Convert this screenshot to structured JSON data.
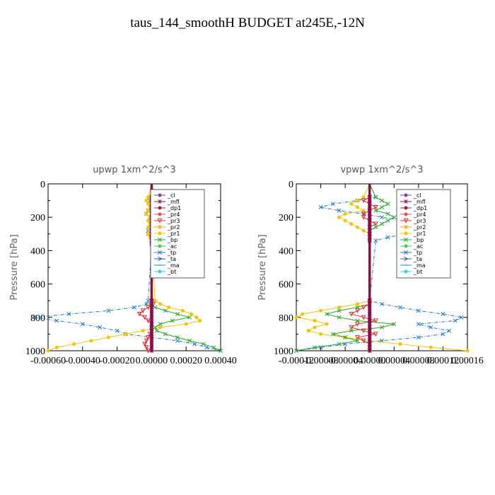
{
  "title": "taus_144_smoothH  BUDGET at245E,-12N",
  "chart_data": [
    {
      "type": "line",
      "subtitle": "upwp   1xm^2/s^3",
      "ylabel": "Pressure [hPa]",
      "ylim": [
        1000,
        0
      ],
      "xlim": [
        -0.0006,
        0.0004
      ],
      "xtick_labels": [
        "-0.00060",
        "-0.00040",
        "-0.00020",
        "0.00000",
        "0.00020",
        "0.00040"
      ],
      "xtick_values": [
        -0.0006,
        -0.0004,
        -0.0002,
        0.0,
        0.0002,
        0.0004
      ],
      "ytick_labels": [
        "0",
        "200",
        "400",
        "600",
        "800",
        "1000"
      ],
      "ytick_values": [
        0,
        200,
        400,
        600,
        800,
        1000
      ],
      "legend": [
        "_cl",
        "_mfl",
        "_dp1",
        "_pr4",
        "_pr3",
        "_pr2",
        "_pr1",
        "_bp",
        "_ac",
        "_tp",
        "_ta",
        "_ma",
        "_bt"
      ],
      "legend_position": "top-right",
      "y_levels": [
        0,
        80,
        100,
        120,
        140,
        160,
        180,
        200,
        220,
        240,
        260,
        280,
        300,
        320,
        340,
        360,
        700,
        720,
        740,
        760,
        780,
        800,
        820,
        840,
        860,
        880,
        900,
        920,
        940,
        960,
        980,
        1000
      ],
      "series": [
        {
          "name": "_tp",
          "color": "#1f78c8",
          "values": [
            0,
            3e-05,
            4e-05,
            2e-05,
            1e-05,
            -2e-05,
            -3e-05,
            -1e-05,
            2e-05,
            1e-05,
            0.0,
            -2e-05,
            -2e-05,
            0.0,
            1e-05,
            0.0,
            -2e-05,
            -3e-05,
            -0.0001,
            -0.00025,
            -0.00048,
            -0.00068,
            -0.00055,
            -0.0004,
            -0.0003,
            -0.0002,
            -0.00015,
            0.0,
            0.00015,
            0.00025,
            0.00032,
            0.0004
          ]
        },
        {
          "name": "_pr2",
          "color": "#f5c400",
          "values": [
            0,
            -2e-05,
            -3e-05,
            -2e-05,
            -1e-05,
            -2e-05,
            -3e-05,
            -1e-05,
            -2e-05,
            -1e-05,
            -2e-05,
            -1e-05,
            -2e-05,
            -1e-05,
            0.0,
            0.0,
            2e-05,
            5e-05,
            0.0001,
            0.00018,
            0.00023,
            0.00026,
            0.00028,
            0.0002,
            5e-05,
            -5e-05,
            -0.00015,
            -0.00025,
            -0.00035,
            -0.00045,
            -0.00055,
            -0.0006
          ]
        },
        {
          "name": "_bp",
          "color": "#28a828",
          "values": [
            0,
            0.0,
            -1e-05,
            0.0,
            1e-05,
            0.0,
            0.0,
            0.0,
            0.0,
            0.0,
            0.0,
            0.0,
            0.0,
            0.0,
            0.0,
            0.0,
            0.0,
            -1e-05,
            2e-05,
            8e-05,
            0.00015,
            0.00022,
            0.00012,
            5e-05,
            2e-05,
            3e-05,
            8e-05,
            0.00015,
            0.00022,
            0.0003,
            0.00036,
            0.0004
          ]
        },
        {
          "name": "_pr3",
          "color": "#e03030",
          "values": [
            0,
            0.0,
            0.0,
            0.0,
            0.0,
            0.0,
            0.0,
            0.0,
            0.0,
            0.0,
            0.0,
            0.0,
            0.0,
            0.0,
            0.0,
            0.0,
            0.0,
            1e-05,
            -2e-05,
            -5e-05,
            -7e-05,
            -4e-05,
            -2e-05,
            0.0,
            0.0,
            0.0,
            -1e-05,
            -2e-05,
            -3e-05,
            -4e-05,
            -3e-05,
            -2e-05
          ]
        },
        {
          "name": "_cl",
          "color": "#8a3aa8",
          "values": [
            0,
            0,
            0,
            0,
            0,
            0,
            0,
            0,
            0,
            0,
            0,
            0,
            0,
            0,
            0,
            0,
            0,
            0,
            0,
            0,
            0,
            0,
            0,
            0,
            0,
            0,
            0,
            0,
            0,
            0,
            0,
            0
          ]
        },
        {
          "name": "_mfl",
          "color": "#8a1040",
          "values": [
            0,
            0,
            0,
            0,
            0,
            0,
            0,
            0,
            0,
            0,
            0,
            0,
            0,
            0,
            0,
            0,
            0,
            0,
            0,
            0,
            0,
            0,
            0,
            0,
            0,
            0,
            0,
            0,
            0,
            0,
            0,
            0
          ]
        }
      ]
    },
    {
      "type": "line",
      "subtitle": "vpwp   1xm^2/s^3",
      "ylabel": "Pressure [hPa]",
      "ylim": [
        1000,
        0
      ],
      "xlim": [
        -0.00012,
        0.00016
      ],
      "xtick_labels": [
        "-0.00012",
        "-0.00008",
        "-0.00004",
        "0.00000",
        "0.00004",
        "0.00008",
        "0.00012",
        "0.00016"
      ],
      "xtick_values": [
        -0.00012,
        -8e-05,
        -4e-05,
        0.0,
        4e-05,
        8e-05,
        0.00012,
        0.00016
      ],
      "ytick_labels": [
        "0",
        "200",
        "400",
        "600",
        "800",
        "1000"
      ],
      "ytick_values": [
        0,
        200,
        400,
        600,
        800,
        1000
      ],
      "legend": [
        "_cl",
        "_mfl",
        "_dp1",
        "_pr4",
        "_pr3",
        "_pr2",
        "_pr1",
        "_bp",
        "_ac",
        "_tp",
        "_ta",
        "_ma",
        "_bt"
      ],
      "legend_position": "top-right",
      "y_levels": [
        0,
        80,
        100,
        120,
        140,
        160,
        180,
        200,
        220,
        240,
        260,
        280,
        300,
        320,
        340,
        700,
        720,
        740,
        760,
        780,
        800,
        820,
        840,
        860,
        880,
        900,
        920,
        940,
        960,
        980,
        1000
      ],
      "series": [
        {
          "name": "_tp",
          "color": "#1f78c8",
          "values": [
            0,
            1e-05,
            -2e-05,
            -6e-05,
            -8e-05,
            -5e-05,
            -1e-05,
            2e-05,
            6e-05,
            8e-05,
            0.0001,
            8e-05,
            6e-05,
            3e-05,
            1e-05,
            0.0,
            2e-05,
            5e-05,
            8e-05,
            0.00012,
            0.00015,
            0.00014,
            8e-05,
            0.0001,
            0.00013,
            0.00012,
            8e-05,
            2e-05,
            -4e-05,
            -8e-05,
            -0.00012
          ]
        },
        {
          "name": "_pr2",
          "color": "#f5c400",
          "values": [
            0,
            -1e-05,
            -2e-05,
            -3e-05,
            -2e-05,
            -1e-05,
            -4e-05,
            -5e-05,
            -4e-05,
            -3e-05,
            -2e-05,
            -1e-05,
            0.0,
            0.0,
            0.0,
            0.0,
            -2e-05,
            -5e-05,
            -8e-05,
            -0.00011,
            -0.00012,
            -9e-05,
            -7e-05,
            -9e-05,
            -0.0001,
            -8e-05,
            -4e-05,
            0.0,
            5e-05,
            0.0001,
            0.00016
          ]
        },
        {
          "name": "_bp",
          "color": "#28a828",
          "values": [
            0,
            1e-05,
            2e-05,
            3e-05,
            2e-05,
            1e-05,
            3e-05,
            4e-05,
            3e-05,
            2e-05,
            1e-05,
            0.0,
            0.0,
            0.0,
            0.0,
            0.0,
            0.0,
            -2e-05,
            -5e-05,
            -7e-05,
            -5e-05,
            -2e-05,
            4e-05,
            2e-05,
            -3e-05,
            -6e-05,
            -4e-05,
            -2e-05,
            -5e-05,
            -9e-05,
            -0.00012
          ]
        },
        {
          "name": "_pr3",
          "color": "#e03030",
          "values": [
            0,
            0.0,
            -1e-05,
            0.0,
            1e-05,
            0.0,
            -1e-05,
            -1e-05,
            0.0,
            1e-05,
            0.0,
            0.0,
            0.0,
            0.0,
            0.0,
            0.0,
            0.0,
            -1e-05,
            -2e-05,
            -3e-05,
            -1e-05,
            1e-05,
            -2e-05,
            -3e-05,
            -1e-05,
            1e-05,
            -2e-05,
            -1e-05,
            0.0,
            0.0,
            0.0
          ]
        },
        {
          "name": "_cl",
          "color": "#8a3aa8",
          "values": [
            0,
            0,
            0,
            0,
            0,
            0,
            0,
            0,
            0,
            0,
            0,
            0,
            0,
            0,
            0,
            0,
            0,
            0,
            0,
            0,
            0,
            0,
            0,
            0,
            0,
            0,
            0,
            0,
            0,
            0,
            0
          ]
        },
        {
          "name": "_mfl",
          "color": "#8a1040",
          "values": [
            0,
            0,
            0,
            0,
            0,
            0,
            0,
            0,
            0,
            0,
            0,
            0,
            0,
            0,
            0,
            0,
            0,
            0,
            0,
            0,
            0,
            0,
            0,
            0,
            0,
            0,
            0,
            0,
            0,
            0,
            0
          ]
        }
      ]
    }
  ],
  "legend_colors": [
    "#8a3aa8",
    "#8a1040",
    "#a02040",
    "#e05050",
    "#e03030",
    "#f5a000",
    "#f5c400",
    "#28a828",
    "#40d040",
    "#1f78c8",
    "#3050c0",
    "#2090d0",
    "#30d0e0"
  ],
  "legend_markers": [
    "circle-marker",
    "star-marker",
    "circle-marker",
    "circle-marker",
    "triangle-marker",
    "star-marker",
    "circle-marker",
    "x-marker",
    "circle-marker",
    "x-marker",
    "arrow-marker",
    "dash-marker",
    "circle-marker"
  ]
}
